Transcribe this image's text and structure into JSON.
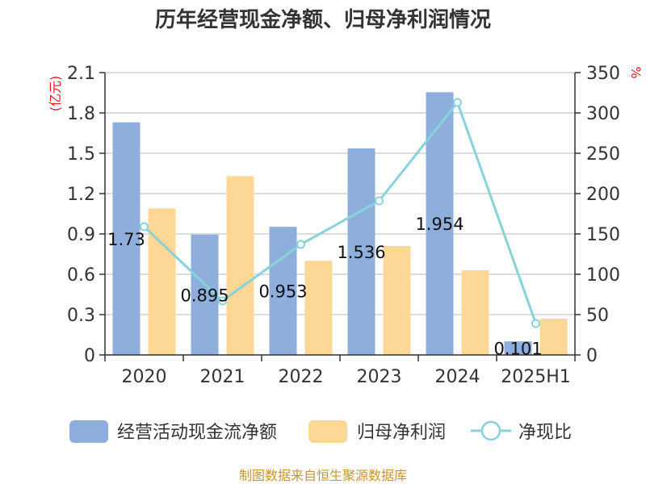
{
  "colors": {
    "cash_flow": "#8eaedb",
    "net_profit": "#fdd795",
    "ratio": "#86d3d9",
    "grid": "#c8c8c8",
    "axis": "#333333",
    "unit": "#e41a1c",
    "source": "#c8952d"
  },
  "chart_data": {
    "type": "bar",
    "title": "历年经营现金净额、归母净利润情况",
    "left_unit": "(亿元)",
    "right_unit": "%",
    "categories": [
      "2020",
      "2021",
      "2022",
      "2023",
      "2024",
      "2025H1"
    ],
    "ylim_left": [
      0,
      2.1
    ],
    "yticks_left": [
      "0",
      "0.3",
      "0.6",
      "0.9",
      "1.2",
      "1.5",
      "1.8",
      "2.1"
    ],
    "ylim_right": [
      0,
      350
    ],
    "yticks_right": [
      "0",
      "50",
      "100",
      "150",
      "200",
      "250",
      "300",
      "350"
    ],
    "grid": true,
    "legend_position": "bottom",
    "series": [
      {
        "name": "经营活动现金流净额",
        "kind": "bar",
        "axis": "left",
        "values": [
          1.73,
          0.895,
          0.953,
          1.536,
          1.954,
          0.101
        ],
        "labels": [
          "1.73",
          "0.895",
          "0.953",
          "1.536",
          "1.954",
          "0.101"
        ]
      },
      {
        "name": "归母净利润",
        "kind": "bar",
        "axis": "left",
        "values": [
          1.09,
          1.33,
          0.7,
          0.81,
          0.63,
          0.27
        ]
      },
      {
        "name": "净现比",
        "kind": "line",
        "axis": "right",
        "values": [
          159,
          67,
          137,
          191,
          313,
          39
        ]
      }
    ]
  },
  "source_text": "制图数据来自恒生聚源数据库"
}
